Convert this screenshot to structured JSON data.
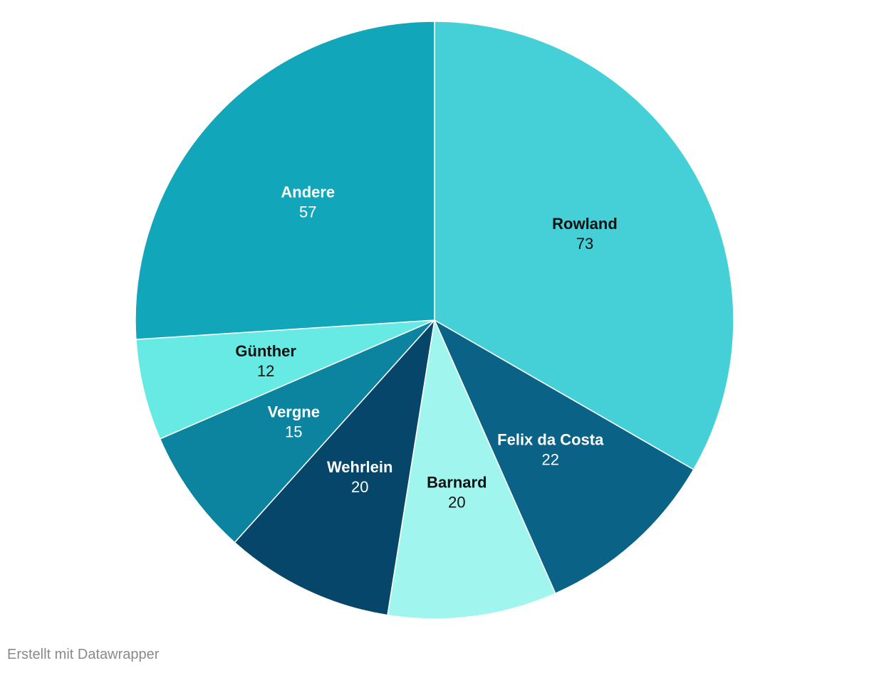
{
  "chart_data": {
    "type": "pie",
    "title": "",
    "start": "top",
    "direction": "clockwise",
    "slices": [
      {
        "label": "Rowland",
        "value": 73,
        "color": "#45d0d8",
        "text_color": "#111111"
      },
      {
        "label": "Felix da Costa",
        "value": 22,
        "color": "#0a6286",
        "text_color": "#ffffff"
      },
      {
        "label": "Barnard",
        "value": 20,
        "color": "#a0f6ee",
        "text_color": "#111111"
      },
      {
        "label": "Wehrlein",
        "value": 20,
        "color": "#05466a",
        "text_color": "#ffffff"
      },
      {
        "label": "Vergne",
        "value": 15,
        "color": "#0c84a0",
        "text_color": "#ffffff"
      },
      {
        "label": "Günther",
        "value": 12,
        "color": "#68eae4",
        "text_color": "#111111"
      },
      {
        "label": "Andere",
        "value": 57,
        "color": "#12a6ba",
        "text_color": "#ffffff"
      }
    ]
  },
  "footer": {
    "credit": "Erstellt mit Datawrapper"
  }
}
